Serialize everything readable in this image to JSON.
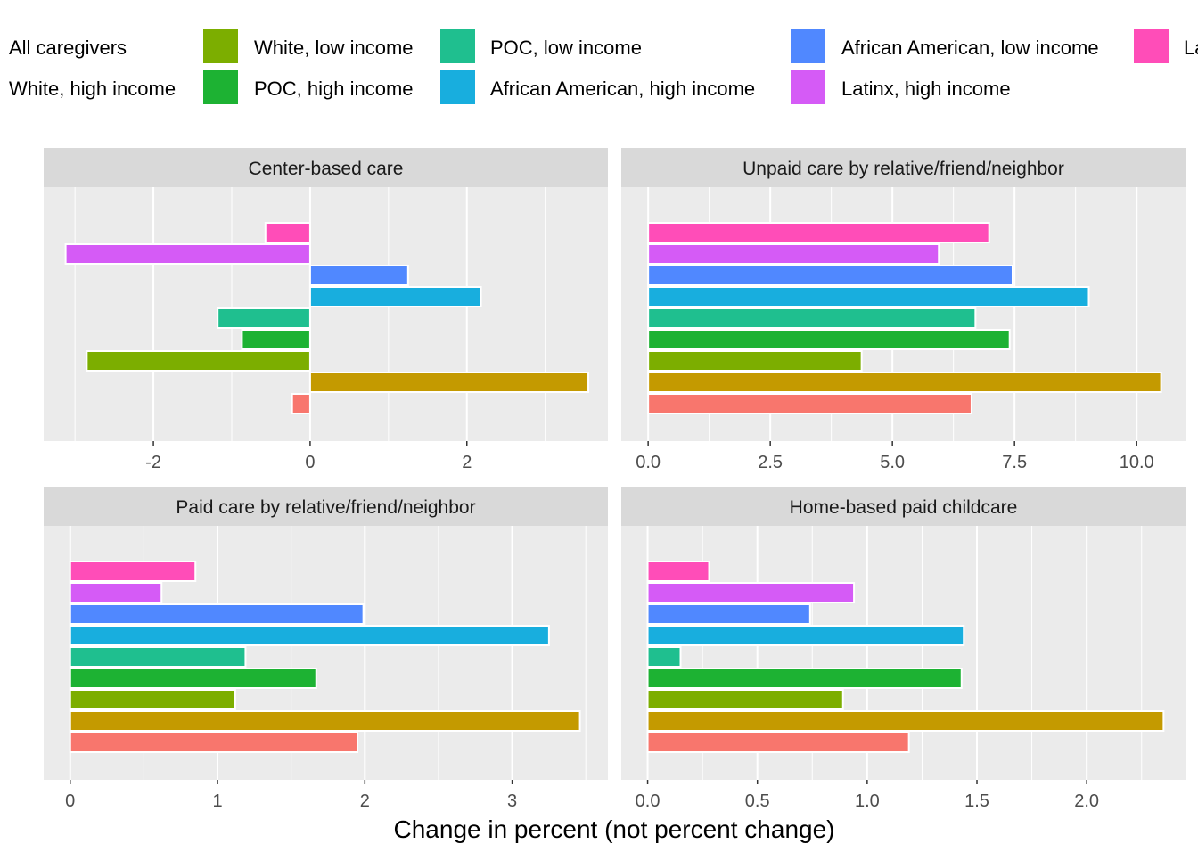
{
  "chart_data": {
    "type": "bar",
    "orientation": "horizontal",
    "xlabel": "Change in percent (not percent change)",
    "ylabel": "",
    "grid": true,
    "legend_position": "top",
    "legend": [
      {
        "name": "All caregivers",
        "color": "#F8766D"
      },
      {
        "name": "White, high income",
        "color": "#C49A00"
      },
      {
        "name": "White, low income",
        "color": "#7CAE00"
      },
      {
        "name": "POC, high income",
        "color": "#1DB233"
      },
      {
        "name": "POC, low income",
        "color": "#1FBF8F"
      },
      {
        "name": "African American, high income",
        "color": "#18AEDE"
      },
      {
        "name": "African American, low income",
        "color": "#5088FF"
      },
      {
        "name": "Latinx, high income",
        "color": "#D55BF6"
      },
      {
        "name": "Latinx, low income",
        "color": "#FF4DB8"
      }
    ],
    "legend_visible_text": {
      "Latinx, low income": "La"
    },
    "panels": [
      {
        "title": "Center-based care",
        "xlim": [
          -3.4,
          3.8
        ],
        "ticks": [
          -2,
          0,
          2
        ],
        "tick_labels": [
          "-2",
          "0",
          "2"
        ],
        "values": [
          -0.23,
          3.55,
          -2.85,
          -0.87,
          -1.18,
          2.18,
          1.25,
          -3.12,
          -0.57
        ]
      },
      {
        "title": "Unpaid care by relative/friend/neighbor",
        "xlim": [
          -0.55,
          11.0
        ],
        "ticks": [
          0,
          2.5,
          5,
          7.5,
          10
        ],
        "tick_labels": [
          "0.0",
          "2.5",
          "5.0",
          "7.5",
          "10.0"
        ],
        "values": [
          6.62,
          10.5,
          4.37,
          7.4,
          6.7,
          9.02,
          7.46,
          5.95,
          6.98
        ]
      },
      {
        "title": "Paid care by relative/friend/neighbor",
        "xlim": [
          -0.18,
          3.65
        ],
        "ticks": [
          0,
          1,
          2,
          3
        ],
        "tick_labels": [
          "0",
          "1",
          "2",
          "3"
        ],
        "values": [
          1.95,
          3.46,
          1.12,
          1.67,
          1.19,
          3.25,
          1.99,
          0.62,
          0.85
        ]
      },
      {
        "title": "Home-based paid childcare",
        "xlim": [
          -0.12,
          2.45
        ],
        "ticks": [
          0,
          0.5,
          1,
          1.5,
          2
        ],
        "tick_labels": [
          "0.0",
          "0.5",
          "1.0",
          "1.5",
          "2.0"
        ],
        "values": [
          1.19,
          2.35,
          0.89,
          1.43,
          0.15,
          1.44,
          0.74,
          0.94,
          0.28
        ]
      }
    ]
  }
}
